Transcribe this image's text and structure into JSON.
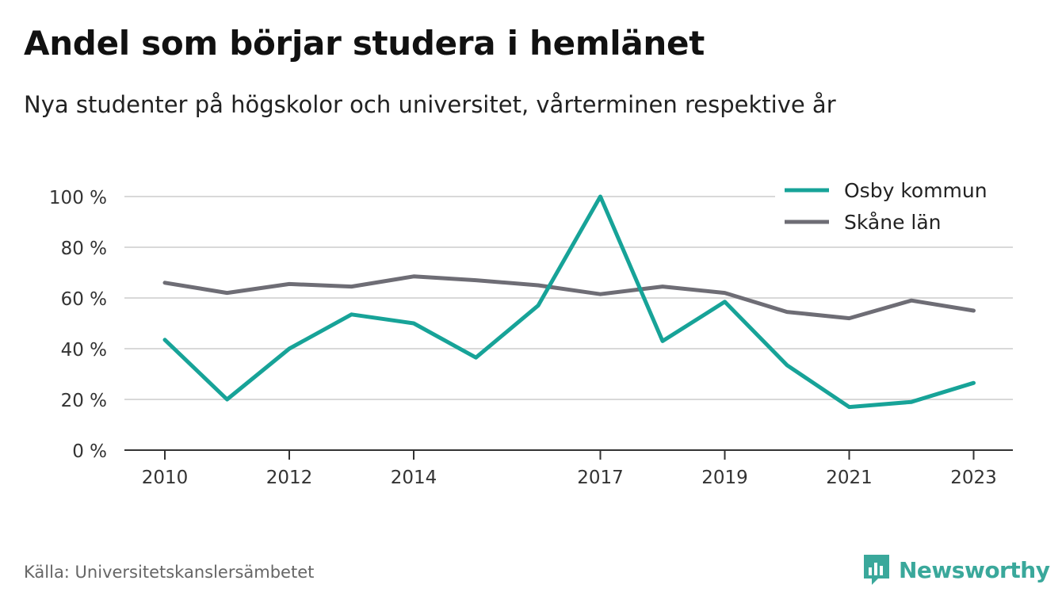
{
  "title": "Andel som börjar studera i hemlänet",
  "subtitle": "Nya studenter på högskolor och universitet, vårterminen respektive år",
  "source": "Källa: Universitetskanslersämbetet",
  "brand": "Newsworthy",
  "colors": {
    "osby": "#17a398",
    "skane": "#6e6d75",
    "grid": "#d9d9d9",
    "axis": "#333333",
    "brand": "#3aa89b"
  },
  "chart_data": {
    "type": "line",
    "x": [
      2010,
      2011,
      2012,
      2013,
      2014,
      2015,
      2016,
      2017,
      2018,
      2019,
      2020,
      2021,
      2022,
      2023
    ],
    "x_tick_labels": [
      "2010",
      "2012",
      "2014",
      "2017",
      "2019",
      "2021",
      "2023"
    ],
    "y_ticks": [
      0,
      20,
      40,
      60,
      80,
      100
    ],
    "y_tick_labels": [
      "0 %",
      "20 %",
      "40 %",
      "60 %",
      "80 %",
      "100 %"
    ],
    "ylim": [
      0,
      100
    ],
    "grid": true,
    "legend_position": "top-right",
    "series": [
      {
        "name": "Osby kommun",
        "values": [
          43.5,
          20,
          40,
          53.5,
          50,
          36.5,
          57,
          100,
          43,
          58.5,
          33.5,
          17,
          19,
          26.5
        ]
      },
      {
        "name": "Skåne län",
        "values": [
          66,
          62,
          65.5,
          64.5,
          68.5,
          67,
          65,
          61.5,
          64.5,
          62,
          54.5,
          52,
          59,
          55
        ]
      }
    ]
  }
}
